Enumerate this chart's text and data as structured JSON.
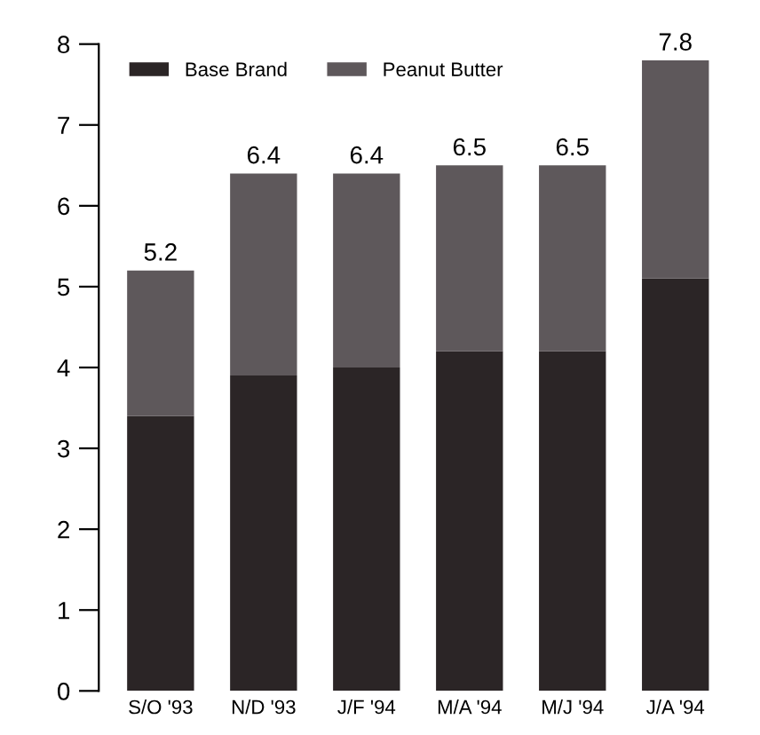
{
  "chart_data": {
    "type": "bar",
    "stacked": true,
    "categories": [
      "S/O '93",
      "N/D '93",
      "J/F '94",
      "M/A '94",
      "M/J '94",
      "J/A '94"
    ],
    "series": [
      {
        "name": "Base Brand",
        "color": "#2b2526",
        "values": [
          3.4,
          3.9,
          4.0,
          4.2,
          4.2,
          5.1
        ]
      },
      {
        "name": "Peanut Butter",
        "color": "#5e585b",
        "values": [
          1.8,
          2.5,
          2.4,
          2.3,
          2.3,
          2.7
        ]
      }
    ],
    "totals": [
      "5.2",
      "6.4",
      "6.4",
      "6.5",
      "6.5",
      "7.8"
    ],
    "ylim": [
      0,
      8
    ],
    "yticks": [
      0,
      1,
      2,
      3,
      4,
      5,
      6,
      7,
      8
    ],
    "grid": false,
    "legend": "top left"
  }
}
